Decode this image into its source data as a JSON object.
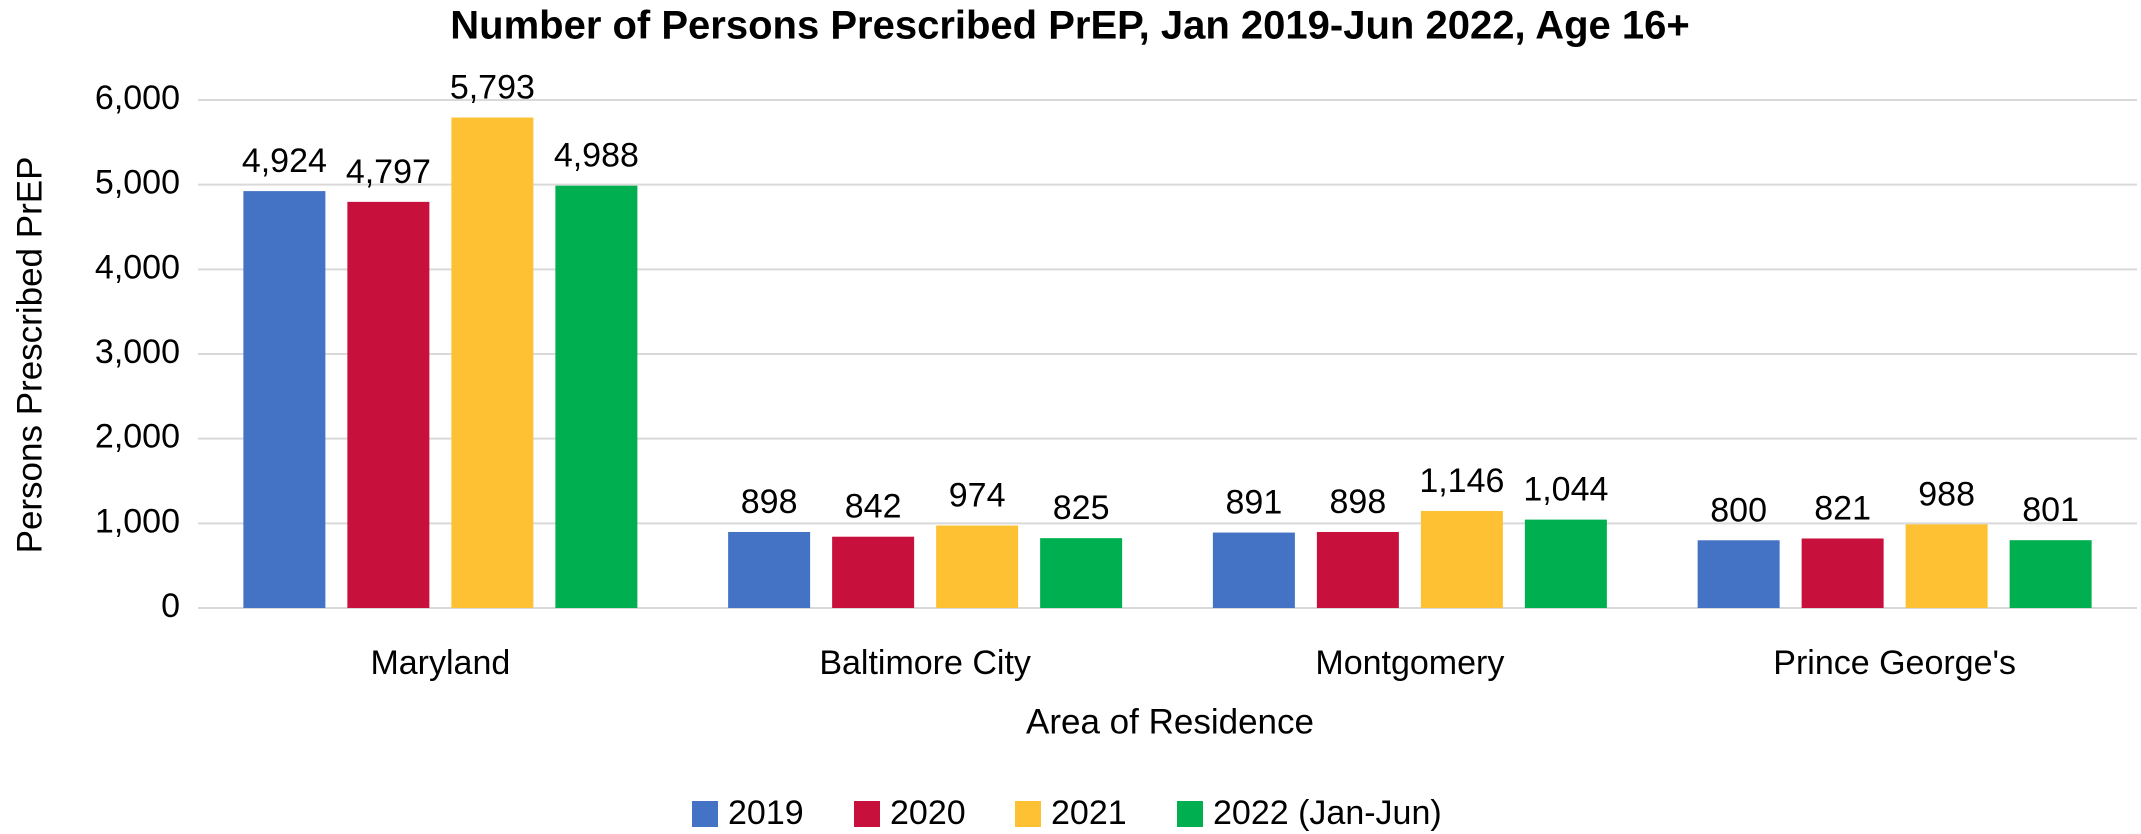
{
  "chart_data": {
    "type": "bar",
    "title": "Number of Persons Prescribed PrEP, Jan 2019-Jun 2022, Age 16+",
    "x_label": "Area of Residence",
    "y_label": "Persons Prescribed PrEP",
    "categories": [
      "Maryland",
      "Baltimore City",
      "Montgomery",
      "Prince George's"
    ],
    "series": [
      {
        "name": "2019",
        "color": "#4472c4",
        "values": [
          4924,
          898,
          891,
          800
        ],
        "value_labels": [
          "4,924",
          "898",
          "891",
          "800"
        ]
      },
      {
        "name": "2020",
        "color": "#c8103c",
        "values": [
          4797,
          842,
          898,
          821
        ],
        "value_labels": [
          "4,797",
          "842",
          "898",
          "821"
        ]
      },
      {
        "name": "2021",
        "color": "#fdc133",
        "values": [
          5793,
          974,
          1146,
          988
        ],
        "value_labels": [
          "5,793",
          "974",
          "1,146",
          "988"
        ]
      },
      {
        "name": "2022 (Jan-Jun)",
        "color": "#00b050",
        "values": [
          4988,
          825,
          1044,
          801
        ],
        "value_labels": [
          "4,988",
          "825",
          "1,044",
          "801"
        ]
      }
    ],
    "ylim": [
      0,
      6000
    ],
    "yticks": [
      0,
      {
        "value": 1000,
        "label": "1,000"
      },
      {
        "value": 2000,
        "label": "2,000"
      },
      {
        "value": 3000,
        "label": "3,000"
      },
      {
        "value": 4000,
        "label": "4,000"
      },
      {
        "value": 5000,
        "label": "5,000"
      },
      {
        "value": 6000,
        "label": "6,000"
      }
    ],
    "grid": true,
    "legend": "bottom"
  }
}
